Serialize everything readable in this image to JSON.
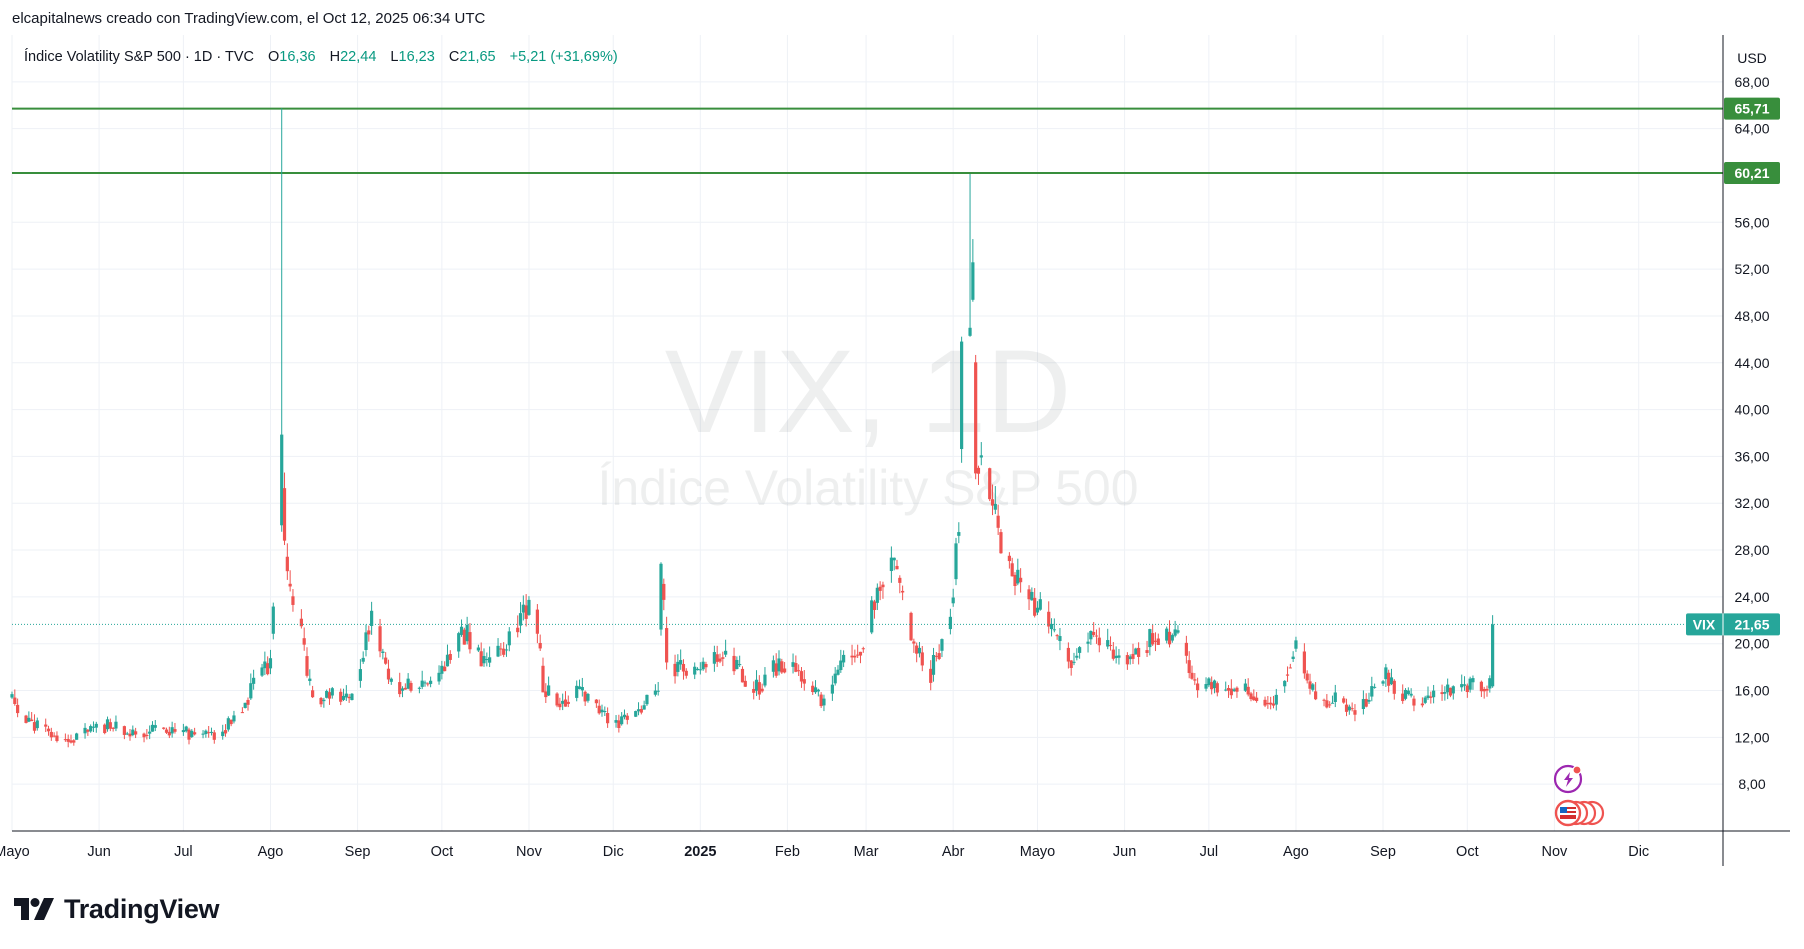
{
  "caption": "elcapitalnews creado con TradingView.com, el Oct 12, 2025 06:34 UTC",
  "brand": {
    "name": "TradingView",
    "logo_icon": "tradingview-logo-icon"
  },
  "legend": {
    "symbol": "Índice Volatility S&P 500 · 1D · TVC",
    "open_label": "O",
    "open": "16,36",
    "high_label": "H",
    "high": "22,44",
    "low_label": "L",
    "low": "16,23",
    "close_label": "C",
    "close": "21,65",
    "change": "+5,21 (+31,69%)"
  },
  "watermark": {
    "line1": "VIX, 1D",
    "line2": "Índice Volatility S&P 500"
  },
  "colors": {
    "up": "#26a69a",
    "down": "#ef5350",
    "hline": "#388e3c",
    "grid": "#eef1f6",
    "axis_text": "#131722"
  },
  "chart_data": {
    "type": "candlestick",
    "currency": "USD",
    "ylim": [
      4,
      72
    ],
    "y_ticks": [
      {
        "value": 8,
        "label": "8,00"
      },
      {
        "value": 12,
        "label": "12,00"
      },
      {
        "value": 16,
        "label": "16,00"
      },
      {
        "value": 20,
        "label": "20,00"
      },
      {
        "value": 24,
        "label": "24,00"
      },
      {
        "value": 28,
        "label": "28,00"
      },
      {
        "value": 32,
        "label": "32,00"
      },
      {
        "value": 36,
        "label": "36,00"
      },
      {
        "value": 40,
        "label": "40,00"
      },
      {
        "value": 44,
        "label": "44,00"
      },
      {
        "value": 48,
        "label": "48,00"
      },
      {
        "value": 52,
        "label": "52,00"
      },
      {
        "value": 56,
        "label": "56,00"
      },
      {
        "value": 64,
        "label": "64,00"
      },
      {
        "value": 68,
        "label": "68,00"
      }
    ],
    "x_range": [
      "2024-05-01",
      "2025-12-31"
    ],
    "x_ticks": [
      {
        "date": "2024-05-01",
        "label": "Mayo",
        "bold": false
      },
      {
        "date": "2024-06-01",
        "label": "Jun",
        "bold": false
      },
      {
        "date": "2024-07-01",
        "label": "Jul",
        "bold": false
      },
      {
        "date": "2024-08-01",
        "label": "Ago",
        "bold": false
      },
      {
        "date": "2024-09-01",
        "label": "Sep",
        "bold": false
      },
      {
        "date": "2024-10-01",
        "label": "Oct",
        "bold": false
      },
      {
        "date": "2024-11-01",
        "label": "Nov",
        "bold": false
      },
      {
        "date": "2024-12-01",
        "label": "Dic",
        "bold": false
      },
      {
        "date": "2025-01-01",
        "label": "2025",
        "bold": true
      },
      {
        "date": "2025-02-01",
        "label": "Feb",
        "bold": false
      },
      {
        "date": "2025-03-01",
        "label": "Mar",
        "bold": false
      },
      {
        "date": "2025-04-01",
        "label": "Abr",
        "bold": false
      },
      {
        "date": "2025-05-01",
        "label": "Mayo",
        "bold": false
      },
      {
        "date": "2025-06-01",
        "label": "Jun",
        "bold": false
      },
      {
        "date": "2025-07-01",
        "label": "Jul",
        "bold": false
      },
      {
        "date": "2025-08-01",
        "label": "Ago",
        "bold": false
      },
      {
        "date": "2025-09-01",
        "label": "Sep",
        "bold": false
      },
      {
        "date": "2025-10-01",
        "label": "Oct",
        "bold": false
      },
      {
        "date": "2025-11-01",
        "label": "Nov",
        "bold": false
      },
      {
        "date": "2025-12-01",
        "label": "Dic",
        "bold": false
      }
    ],
    "horizontal_lines": [
      {
        "value": 65.71,
        "label": "65,71"
      },
      {
        "value": 60.21,
        "label": "60,21"
      }
    ],
    "last_price": {
      "value": 21.65,
      "label": "21,65",
      "symbol": "VIX"
    },
    "key_points": [
      {
        "date": "2024-08-05",
        "value": 65.73
      },
      {
        "date": "2025-04-07",
        "value": 60.13
      }
    ],
    "anchors": [
      [
        "2024-05-01",
        15.4
      ],
      [
        "2024-05-06",
        13.6
      ],
      [
        "2024-05-15",
        12.4
      ],
      [
        "2024-05-22",
        11.9
      ],
      [
        "2024-06-04",
        13.1
      ],
      [
        "2024-06-12",
        12.3
      ],
      [
        "2024-06-25",
        12.6
      ],
      [
        "2024-07-08",
        12.2
      ],
      [
        "2024-07-15",
        12.5
      ],
      [
        "2024-07-22",
        14.5
      ],
      [
        "2024-07-26",
        16.5
      ],
      [
        "2024-08-01",
        18.5
      ],
      [
        "2024-08-02",
        23.4
      ],
      [
        "2024-08-05",
        38.6
      ],
      [
        "2024-08-06",
        27.7
      ],
      [
        "2024-08-08",
        23.8
      ],
      [
        "2024-08-12",
        20.7
      ],
      [
        "2024-08-16",
        14.8
      ],
      [
        "2024-08-23",
        15.9
      ],
      [
        "2024-08-30",
        15.0
      ],
      [
        "2024-09-06",
        22.4
      ],
      [
        "2024-09-13",
        16.5
      ],
      [
        "2024-09-20",
        16.2
      ],
      [
        "2024-09-30",
        16.7
      ],
      [
        "2024-10-04",
        19.2
      ],
      [
        "2024-10-09",
        20.9
      ],
      [
        "2024-10-18",
        18.0
      ],
      [
        "2024-10-25",
        20.3
      ],
      [
        "2024-10-31",
        23.2
      ],
      [
        "2024-11-04",
        21.9
      ],
      [
        "2024-11-06",
        16.3
      ],
      [
        "2024-11-11",
        14.9
      ],
      [
        "2024-11-18",
        16.0
      ],
      [
        "2024-11-22",
        15.2
      ],
      [
        "2024-12-02",
        13.3
      ],
      [
        "2024-12-10",
        14.2
      ],
      [
        "2024-12-17",
        15.9
      ],
      [
        "2024-12-18",
        27.6
      ],
      [
        "2024-12-20",
        18.4
      ],
      [
        "2024-12-31",
        17.4
      ],
      [
        "2025-01-10",
        19.5
      ],
      [
        "2025-01-20",
        15.9
      ],
      [
        "2025-01-27",
        17.9
      ],
      [
        "2025-02-03",
        18.6
      ],
      [
        "2025-02-14",
        14.8
      ],
      [
        "2025-02-21",
        18.2
      ],
      [
        "2025-02-27",
        19.6
      ],
      [
        "2025-03-04",
        23.5
      ],
      [
        "2025-03-10",
        27.9
      ],
      [
        "2025-03-17",
        20.5
      ],
      [
        "2025-03-24",
        17.5
      ],
      [
        "2025-03-31",
        22.3
      ],
      [
        "2025-04-03",
        30.0
      ],
      [
        "2025-04-04",
        45.3
      ],
      [
        "2025-04-07",
        46.9
      ],
      [
        "2025-04-08",
        52.3
      ],
      [
        "2025-04-09",
        33.6
      ],
      [
        "2025-04-11",
        37.6
      ],
      [
        "2025-04-17",
        29.7
      ],
      [
        "2025-04-25",
        24.8
      ],
      [
        "2025-05-02",
        22.7
      ],
      [
        "2025-05-12",
        18.4
      ],
      [
        "2025-05-21",
        20.9
      ],
      [
        "2025-05-30",
        18.6
      ],
      [
        "2025-06-13",
        20.8
      ],
      [
        "2025-06-20",
        20.6
      ],
      [
        "2025-06-27",
        16.3
      ],
      [
        "2025-07-11",
        16.4
      ],
      [
        "2025-07-25",
        14.9
      ],
      [
        "2025-08-01",
        20.4
      ],
      [
        "2025-08-08",
        15.2
      ],
      [
        "2025-08-15",
        15.1
      ],
      [
        "2025-08-22",
        14.2
      ],
      [
        "2025-09-02",
        17.2
      ],
      [
        "2025-09-12",
        14.8
      ],
      [
        "2025-09-19",
        15.5
      ],
      [
        "2025-10-01",
        16.3
      ],
      [
        "2025-10-09",
        16.4
      ]
    ]
  }
}
